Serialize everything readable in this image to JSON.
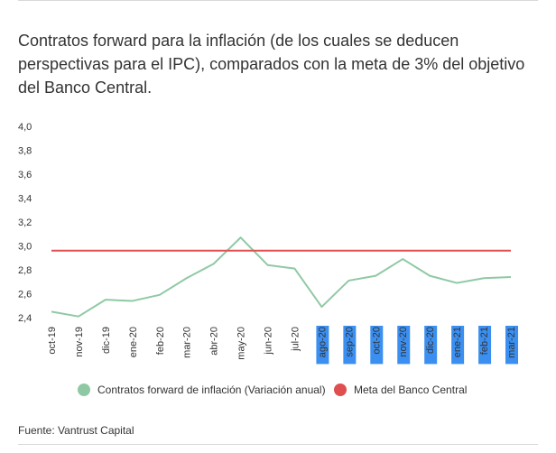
{
  "title": "Contratos forward para la inflación (de los cuales se deducen perspectivas para el IPC), comparados con la meta de 3% del objetivo del Banco Central.",
  "source": "Fuente: Vantrust Capital",
  "colors": {
    "forward": "#8fc9a4",
    "target": "#e04f4f",
    "highlight": "#3b8ff0"
  },
  "chart_data": {
    "type": "line",
    "title": "Contratos forward para la inflación (de los cuales se deducen perspectivas para el IPC), comparados con la meta de 3% del objetivo del Banco Central.",
    "categories": [
      "oct-19",
      "nov-19",
      "dic-19",
      "ene-20",
      "feb-20",
      "mar-20",
      "abr-20",
      "may-20",
      "jun-20",
      "jul-20",
      "ago-20",
      "sep-20",
      "oct-20",
      "nov-20",
      "dic-20",
      "ene-21",
      "feb-21",
      "mar-21"
    ],
    "highlighted_categories": [
      "ago-20",
      "sep-20",
      "oct-20",
      "nov-20",
      "dic-20",
      "ene-21",
      "feb-21",
      "mar-21"
    ],
    "series": [
      {
        "name": "Contratos forward de inflación (Variación anual)",
        "values": [
          2.45,
          2.41,
          2.55,
          2.54,
          2.59,
          2.73,
          2.85,
          3.07,
          2.84,
          2.81,
          2.49,
          2.71,
          2.75,
          2.89,
          2.75,
          2.69,
          2.73,
          2.74
        ]
      },
      {
        "name": "Meta del Banco Central",
        "values": [
          2.96,
          2.96,
          2.96,
          2.96,
          2.96,
          2.96,
          2.96,
          2.96,
          2.96,
          2.96,
          2.96,
          2.96,
          2.96,
          2.96,
          2.96,
          2.96,
          2.96,
          2.96
        ]
      }
    ],
    "ylim": [
      2.4,
      4.0
    ],
    "yticks": [
      "2,4",
      "2,6",
      "2,8",
      "3,0",
      "3,2",
      "3,4",
      "3,6",
      "3,8",
      "4,0"
    ],
    "grid": false,
    "legend": "bottom"
  }
}
